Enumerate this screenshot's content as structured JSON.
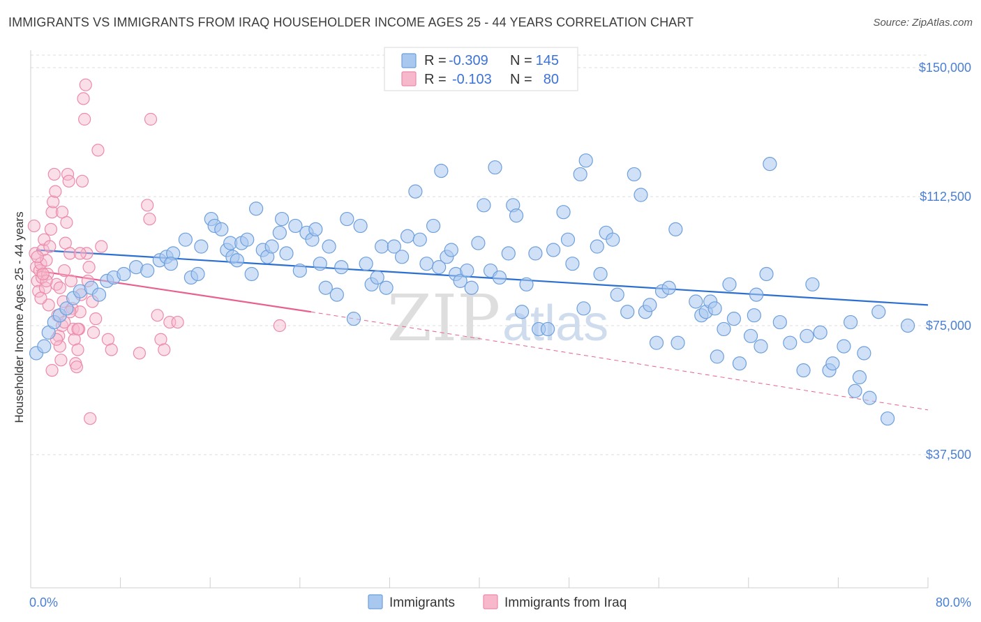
{
  "title": "IMMIGRANTS VS IMMIGRANTS FROM IRAQ HOUSEHOLDER INCOME AGES 25 - 44 YEARS CORRELATION CHART",
  "source": "Source: ZipAtlas.com",
  "watermark": {
    "zip": "ZIP",
    "atlas": "atlas"
  },
  "legend": {
    "r_label": "R =",
    "n_label": "N =",
    "rows": [
      {
        "r": "-0.309",
        "n": "145"
      },
      {
        "r": "-0.103",
        "n": "80"
      }
    ]
  },
  "bottom_legend": [
    "Immigrants",
    "Immigrants from Iraq"
  ],
  "colors": {
    "blue_fill": "#a9c8f0",
    "blue_stroke": "#6d9fdc",
    "blue_line": "#2b6fd1",
    "pink_fill": "#f7b8cc",
    "pink_stroke": "#ec8aa9",
    "pink_line": "#e8608f",
    "tick_text": "#4a7fd4",
    "grid": "#dddddd"
  },
  "chart_data": {
    "type": "scatter",
    "title": "IMMIGRANTS VS IMMIGRANTS FROM IRAQ HOUSEHOLDER INCOME AGES 25 - 44 YEARS CORRELATION CHART",
    "xlabel": "",
    "ylabel": "Householder Income Ages 25 - 44 years",
    "xlim": [
      0,
      80
    ],
    "ylim": [
      0,
      155000
    ],
    "x_tick_labels": [
      "0.0%",
      "80.0%"
    ],
    "y_ticks": [
      37500,
      75000,
      112500,
      150000
    ],
    "y_tick_labels": [
      "$37,500",
      "$75,000",
      "$112,500",
      "$150,000"
    ],
    "grid": "horizontal dashed",
    "legend_position": "top-center",
    "series": [
      {
        "name": "Immigrants",
        "color": "#a9c8f0",
        "r": -0.309,
        "n": 145,
        "trend": {
          "x": [
            0.5,
            80
          ],
          "y": [
            97000,
            81000
          ],
          "style": "solid"
        },
        "points": [
          [
            0.5,
            67000
          ],
          [
            1.2,
            69000
          ],
          [
            1.6,
            73000
          ],
          [
            2.1,
            76000
          ],
          [
            2.6,
            78000
          ],
          [
            3.2,
            80000
          ],
          [
            3.8,
            83000
          ],
          [
            4.4,
            85000
          ],
          [
            5.4,
            86000
          ],
          [
            6.1,
            84000
          ],
          [
            6.8,
            88000
          ],
          [
            7.4,
            89000
          ],
          [
            8.3,
            90000
          ],
          [
            9.4,
            92000
          ],
          [
            10.4,
            91000
          ],
          [
            11.5,
            94000
          ],
          [
            12.1,
            95000
          ],
          [
            12.7,
            96000
          ],
          [
            13.8,
            100000
          ],
          [
            14.3,
            89000
          ],
          [
            14.9,
            90000
          ],
          [
            15.2,
            98000
          ],
          [
            16.1,
            106000
          ],
          [
            16.4,
            104000
          ],
          [
            17.0,
            103000
          ],
          [
            17.5,
            97000
          ],
          [
            17.8,
            99000
          ],
          [
            18.0,
            95000
          ],
          [
            18.4,
            94000
          ],
          [
            18.8,
            99000
          ],
          [
            19.3,
            100000
          ],
          [
            19.7,
            90000
          ],
          [
            20.1,
            109000
          ],
          [
            20.7,
            97000
          ],
          [
            21.1,
            95000
          ],
          [
            21.5,
            98000
          ],
          [
            22.2,
            102000
          ],
          [
            22.4,
            106000
          ],
          [
            22.8,
            96000
          ],
          [
            23.6,
            104000
          ],
          [
            24.0,
            91000
          ],
          [
            24.6,
            102000
          ],
          [
            25.1,
            100000
          ],
          [
            25.4,
            103000
          ],
          [
            25.8,
            93000
          ],
          [
            26.6,
            98000
          ],
          [
            27.3,
            84000
          ],
          [
            27.7,
            92000
          ],
          [
            28.2,
            106000
          ],
          [
            28.8,
            77000
          ],
          [
            29.4,
            104000
          ],
          [
            29.9,
            93000
          ],
          [
            30.4,
            87000
          ],
          [
            30.9,
            89000
          ],
          [
            31.3,
            98000
          ],
          [
            31.7,
            86000
          ],
          [
            32.4,
            98000
          ],
          [
            33.1,
            95000
          ],
          [
            33.6,
            101000
          ],
          [
            34.3,
            114000
          ],
          [
            34.7,
            100000
          ],
          [
            35.3,
            93000
          ],
          [
            35.9,
            104000
          ],
          [
            36.4,
            92000
          ],
          [
            37.1,
            95000
          ],
          [
            37.5,
            97000
          ],
          [
            37.9,
            90000
          ],
          [
            38.3,
            88000
          ],
          [
            38.9,
            91000
          ],
          [
            39.3,
            86000
          ],
          [
            39.9,
            99000
          ],
          [
            40.4,
            110000
          ],
          [
            41.0,
            91000
          ],
          [
            41.4,
            121000
          ],
          [
            41.8,
            89000
          ],
          [
            42.6,
            96000
          ],
          [
            43.0,
            110000
          ],
          [
            43.3,
            107000
          ],
          [
            43.8,
            79000
          ],
          [
            44.2,
            87000
          ],
          [
            45.0,
            96000
          ],
          [
            45.3,
            74000
          ],
          [
            46.1,
            74000
          ],
          [
            46.6,
            97000
          ],
          [
            47.5,
            108000
          ],
          [
            47.9,
            100000
          ],
          [
            48.3,
            93000
          ],
          [
            49.0,
            119000
          ],
          [
            49.5,
            123000
          ],
          [
            49.3,
            80000
          ],
          [
            50.5,
            98000
          ],
          [
            50.8,
            90000
          ],
          [
            51.3,
            102000
          ],
          [
            51.9,
            100000
          ],
          [
            52.3,
            84000
          ],
          [
            53.2,
            79000
          ],
          [
            53.8,
            119000
          ],
          [
            54.4,
            113000
          ],
          [
            54.8,
            79000
          ],
          [
            55.2,
            81000
          ],
          [
            55.8,
            70000
          ],
          [
            56.3,
            85000
          ],
          [
            56.9,
            86000
          ],
          [
            57.5,
            103000
          ],
          [
            57.7,
            70000
          ],
          [
            59.3,
            82000
          ],
          [
            59.8,
            78000
          ],
          [
            60.2,
            79000
          ],
          [
            60.6,
            82000
          ],
          [
            61.2,
            66000
          ],
          [
            61.8,
            74000
          ],
          [
            62.3,
            87000
          ],
          [
            62.7,
            77000
          ],
          [
            63.2,
            64000
          ],
          [
            64.2,
            72000
          ],
          [
            64.7,
            84000
          ],
          [
            65.1,
            69000
          ],
          [
            65.6,
            90000
          ],
          [
            65.9,
            122000
          ],
          [
            66.8,
            76000
          ],
          [
            67.7,
            70000
          ],
          [
            68.9,
            62000
          ],
          [
            69.2,
            72000
          ],
          [
            69.7,
            87000
          ],
          [
            70.4,
            73000
          ],
          [
            71.2,
            62000
          ],
          [
            71.5,
            64000
          ],
          [
            72.5,
            69000
          ],
          [
            73.1,
            76000
          ],
          [
            73.5,
            56000
          ],
          [
            73.9,
            60000
          ],
          [
            74.3,
            67000
          ],
          [
            74.8,
            54000
          ],
          [
            75.6,
            79000
          ],
          [
            76.4,
            48000
          ],
          [
            78.2,
            75000
          ],
          [
            61.0,
            80000
          ],
          [
            64.5,
            78000
          ],
          [
            36.6,
            120000
          ],
          [
            26.3,
            86000
          ],
          [
            12.5,
            93000
          ]
        ]
      },
      {
        "name": "Immigrants from Iraq",
        "color": "#f7b8cc",
        "r": -0.103,
        "n": 80,
        "trend": {
          "solid": {
            "x": [
              0.5,
              25
            ],
            "y": [
              91000,
              79000
            ]
          },
          "dashed": {
            "x": [
              25,
              80
            ],
            "y": [
              79000,
              50500
            ]
          }
        },
        "points": [
          [
            0.3,
            104000
          ],
          [
            0.4,
            96000
          ],
          [
            0.5,
            92000
          ],
          [
            0.6,
            88000
          ],
          [
            0.7,
            85000
          ],
          [
            0.8,
            91000
          ],
          [
            0.9,
            93000
          ],
          [
            1.0,
            89000
          ],
          [
            1.1,
            97000
          ],
          [
            1.2,
            100000
          ],
          [
            1.3,
            86000
          ],
          [
            1.4,
            94000
          ],
          [
            1.5,
            90000
          ],
          [
            1.6,
            81000
          ],
          [
            1.7,
            98000
          ],
          [
            1.8,
            103000
          ],
          [
            1.9,
            108000
          ],
          [
            2.0,
            111000
          ],
          [
            2.1,
            119000
          ],
          [
            2.2,
            114000
          ],
          [
            2.3,
            87000
          ],
          [
            2.4,
            78000
          ],
          [
            2.5,
            72000
          ],
          [
            2.6,
            69000
          ],
          [
            2.7,
            65000
          ],
          [
            2.8,
            75000
          ],
          [
            2.9,
            82000
          ],
          [
            3.0,
            91000
          ],
          [
            3.1,
            99000
          ],
          [
            3.2,
            105000
          ],
          [
            3.3,
            119000
          ],
          [
            3.4,
            117000
          ],
          [
            3.5,
            96000
          ],
          [
            3.6,
            88000
          ],
          [
            3.7,
            80000
          ],
          [
            3.8,
            74000
          ],
          [
            3.9,
            71000
          ],
          [
            4.0,
            64000
          ],
          [
            4.1,
            63000
          ],
          [
            4.2,
            68000
          ],
          [
            4.3,
            74000
          ],
          [
            4.4,
            79000
          ],
          [
            4.5,
            84000
          ],
          [
            4.6,
            117000
          ],
          [
            4.7,
            141000
          ],
          [
            4.8,
            135000
          ],
          [
            4.9,
            145000
          ],
          [
            5.0,
            96000
          ],
          [
            5.1,
            88000
          ],
          [
            5.2,
            92000
          ],
          [
            5.3,
            48000
          ],
          [
            5.5,
            82000
          ],
          [
            5.8,
            77000
          ],
          [
            6.0,
            126000
          ],
          [
            6.3,
            98000
          ],
          [
            6.9,
            71000
          ],
          [
            7.2,
            68000
          ],
          [
            9.7,
            67000
          ],
          [
            10.4,
            110000
          ],
          [
            10.6,
            106000
          ],
          [
            10.7,
            135000
          ],
          [
            11.3,
            78000
          ],
          [
            11.6,
            71000
          ],
          [
            11.9,
            68000
          ],
          [
            12.4,
            76000
          ],
          [
            13.1,
            76000
          ],
          [
            22.2,
            75000
          ],
          [
            1.9,
            62000
          ],
          [
            2.6,
            86000
          ],
          [
            3.0,
            76000
          ],
          [
            4.2,
            74000
          ],
          [
            0.9,
            83000
          ],
          [
            1.4,
            88000
          ],
          [
            2.3,
            71000
          ],
          [
            3.5,
            79000
          ],
          [
            0.6,
            95000
          ],
          [
            4.4,
            96000
          ],
          [
            5.6,
            73000
          ],
          [
            1.1,
            90000
          ],
          [
            2.8,
            108000
          ]
        ]
      }
    ]
  }
}
